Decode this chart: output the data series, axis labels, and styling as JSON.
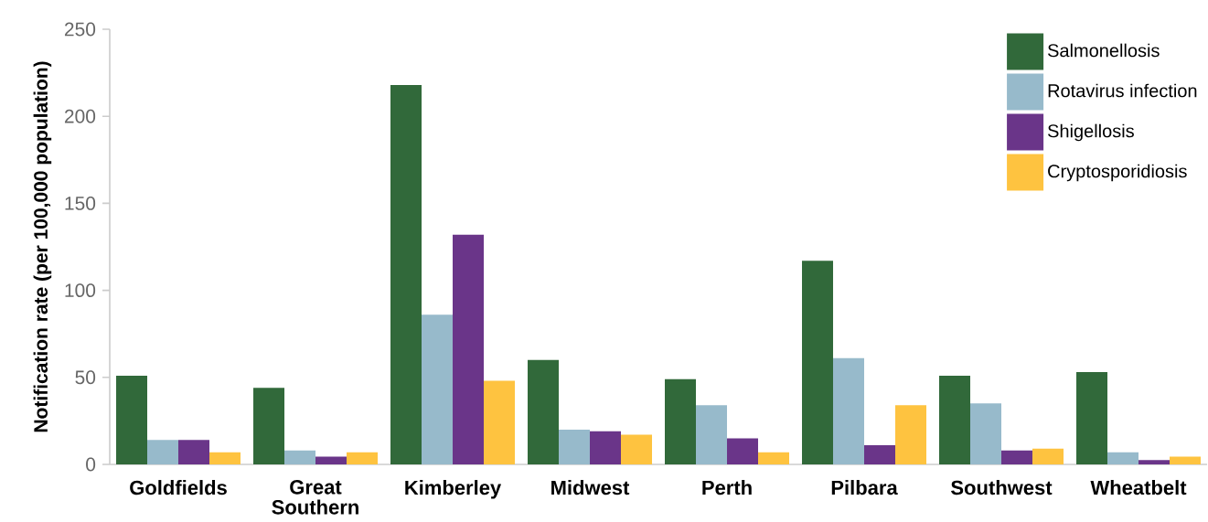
{
  "chart_data": {
    "type": "bar",
    "ylabel": "Notification rate (per 100,000 population)",
    "categories": [
      "Goldfields",
      "Great Southern",
      "Kimberley",
      "Midwest",
      "Perth",
      "Pilbara",
      "Southwest",
      "Wheatbelt"
    ],
    "series": [
      {
        "name": "Salmonellosis",
        "color": "#31693a",
        "values": [
          51,
          44,
          218,
          60,
          49,
          117,
          51,
          53
        ]
      },
      {
        "name": "Rotavirus infection",
        "color": "#97bacb",
        "values": [
          14,
          8,
          86,
          20,
          34,
          61,
          35,
          7
        ]
      },
      {
        "name": "Shigellosis",
        "color": "#6a3589",
        "values": [
          14,
          4.5,
          132,
          19,
          15,
          11,
          8,
          2.5
        ]
      },
      {
        "name": "Cryptosporidiosis",
        "color": "#fec340",
        "values": [
          7,
          7,
          48,
          17,
          7,
          34,
          9,
          4.5
        ]
      }
    ],
    "ylim": [
      0,
      250
    ],
    "yticks": [
      0,
      50,
      100,
      150,
      200,
      250
    ],
    "legend": "top right"
  }
}
